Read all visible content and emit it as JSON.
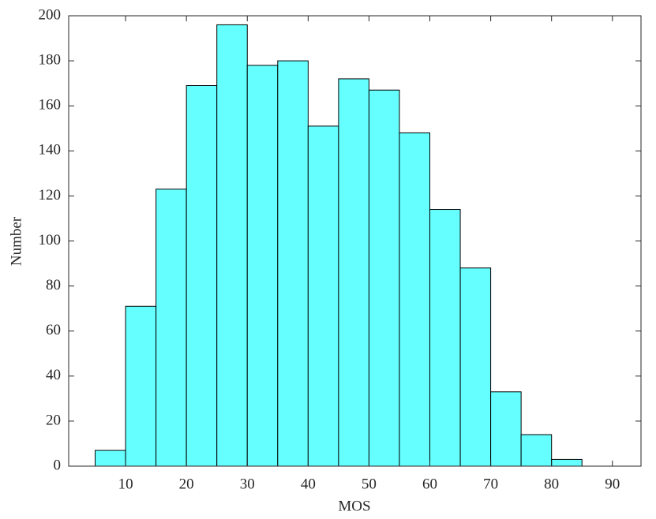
{
  "chart_data": {
    "type": "histogram",
    "x_label": "MOS",
    "y_label": "Number",
    "bins": [
      5,
      10,
      15,
      20,
      25,
      30,
      35,
      40,
      45,
      50,
      55,
      60,
      65,
      70,
      75,
      80,
      85
    ],
    "values": [
      7,
      71,
      123,
      169,
      196,
      178,
      180,
      151,
      172,
      167,
      148,
      114,
      88,
      33,
      14,
      3
    ],
    "color": "#66ffff",
    "xlim": [
      0.65,
      94.7
    ],
    "xticks": [
      10,
      20,
      30,
      40,
      50,
      60,
      70,
      80,
      90
    ],
    "ylim": [
      0,
      200
    ],
    "yticks": [
      0,
      20,
      40,
      60,
      80,
      100,
      120,
      140,
      160,
      180,
      200
    ],
    "grid": false
  }
}
